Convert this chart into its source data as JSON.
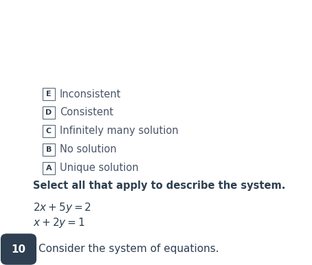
{
  "background_color": "#ffffff",
  "question_number": "10",
  "question_number_bg": "#2d3f50",
  "question_number_color": "#ffffff",
  "question_text": "Consider the system of equations.",
  "equation1": "$x + 2y = 1$",
  "equation2": "$2x + 5y = 2$",
  "instruction": "Select all that apply to describe the system.",
  "options": [
    {
      "letter": "A",
      "text": "Unique solution"
    },
    {
      "letter": "B",
      "text": "No solution"
    },
    {
      "letter": "C",
      "text": "Infinitely many solution"
    },
    {
      "letter": "D",
      "text": "Consistent"
    },
    {
      "letter": "E",
      "text": "Inconsistent"
    }
  ],
  "text_color": "#2d3f50",
  "option_text_color": "#4a5568",
  "box_edge_color": "#5a6a7a",
  "fig_width": 4.54,
  "fig_height": 3.86,
  "dpi": 100
}
